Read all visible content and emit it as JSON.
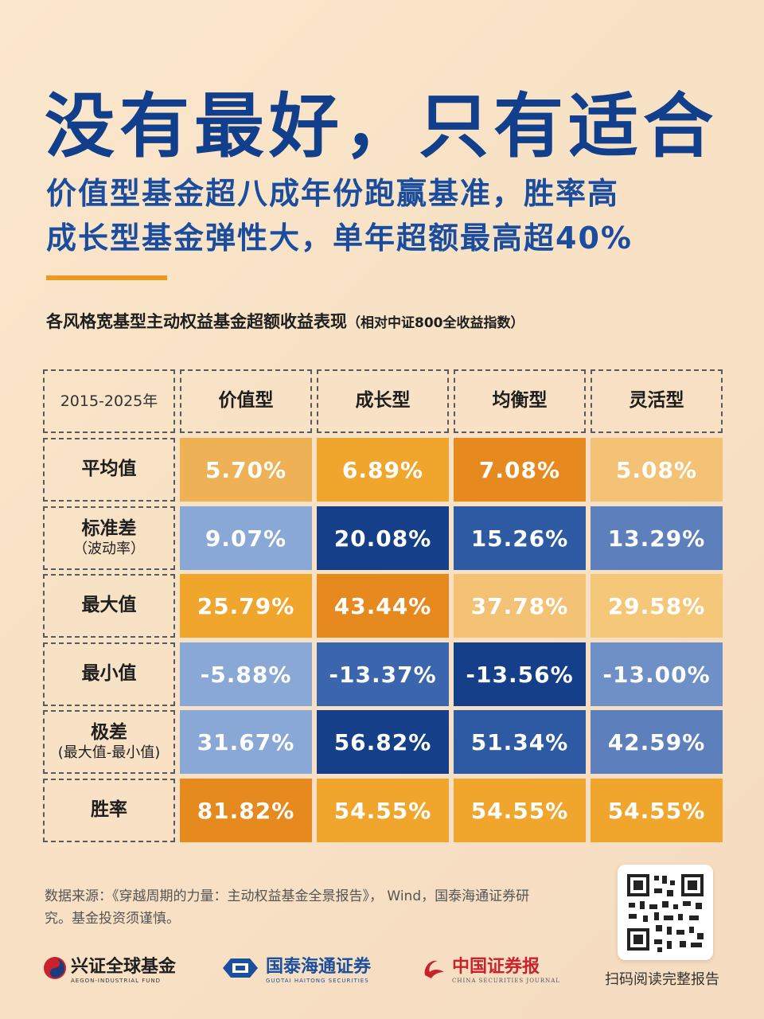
{
  "headline": "没有最好，只有适合",
  "subtitle_line1": "价值型基金超八成年份跑赢基准，胜率高",
  "subtitle_line2": "成长型基金弹性大，单年超额最高超40%",
  "table_title": "各风格宽基型主动权益基金超额收益表现",
  "table_note": "（相对中证800全收益指数）",
  "table": {
    "corner": "2015-2025年",
    "columns": [
      "价值型",
      "成长型",
      "均衡型",
      "灵活型"
    ],
    "rows": [
      {
        "label": "平均值",
        "sub": "",
        "values": [
          "5.70%",
          "6.89%",
          "7.08%",
          "5.08%"
        ],
        "colors": [
          "#efb156",
          "#f0a62c",
          "#e68a1f",
          "#f4c274"
        ]
      },
      {
        "label": "标准差",
        "sub": "（波动率）",
        "values": [
          "9.07%",
          "20.08%",
          "15.26%",
          "13.29%"
        ],
        "colors": [
          "#8aa8d6",
          "#163f8a",
          "#2d5aa3",
          "#5d80bd"
        ]
      },
      {
        "label": "最大值",
        "sub": "",
        "values": [
          "25.79%",
          "43.44%",
          "37.78%",
          "29.58%"
        ],
        "colors": [
          "#f0a62c",
          "#e68a1f",
          "#f4c274",
          "#f5c879"
        ]
      },
      {
        "label": "最小值",
        "sub": "",
        "values": [
          "-5.88%",
          "-13.37%",
          "-13.56%",
          "-13.00%"
        ],
        "colors": [
          "#8aa8d6",
          "#3b66ad",
          "#163f8a",
          "#6e90c7"
        ]
      },
      {
        "label": "极差",
        "sub": "(最大值-最小值)",
        "values": [
          "31.67%",
          "56.82%",
          "51.34%",
          "42.59%"
        ],
        "colors": [
          "#8aa8d6",
          "#163f8a",
          "#2d5aa3",
          "#5d80bd"
        ]
      },
      {
        "label": "胜率",
        "sub": "",
        "values": [
          "81.82%",
          "54.55%",
          "54.55%",
          "54.55%"
        ],
        "colors": [
          "#e68a1f",
          "#f0a62c",
          "#f0a62c",
          "#f0a62c"
        ]
      }
    ]
  },
  "footer": {
    "source": "数据来源：《穿越周期的力量：主动权益基金全景报告》， Wind，国泰海通证券研究。基金投资须谨慎。",
    "qr_caption": "扫码阅读完整报告"
  },
  "logos": {
    "aegon": "兴证全球基金",
    "aegon_en": "AEGON-INDUSTRIAL FUND",
    "guotai": "国泰海通证券",
    "guotai_en": "GUOTAI HAITONG SECURITIES",
    "csj": "中国证券报",
    "csj_en": "CHINA SECURITIES JOURNAL"
  },
  "colors": {
    "title_blue": "#123f8c",
    "accent_orange": "#ea9a23"
  }
}
